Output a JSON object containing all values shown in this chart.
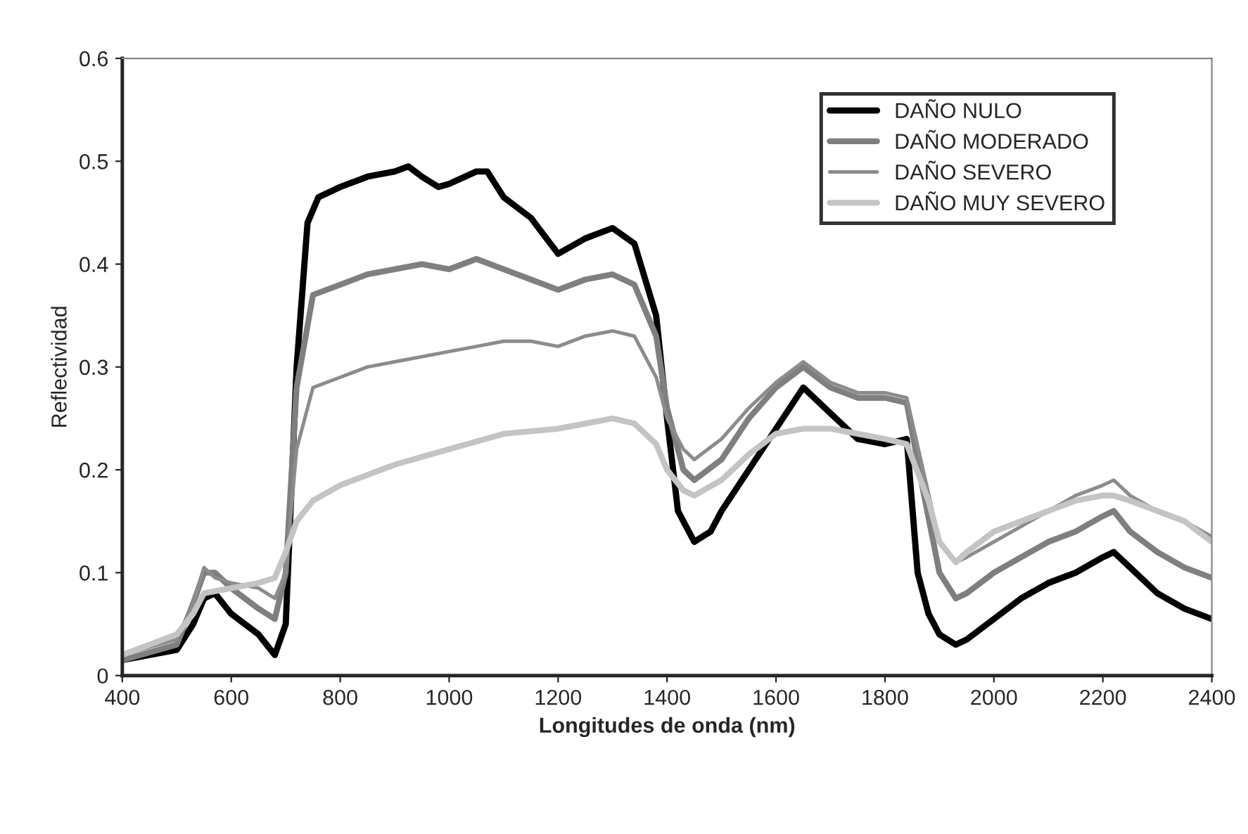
{
  "chart_data": {
    "type": "line",
    "xlabel": "Longitudes de onda (nm)",
    "ylabel": "Reflectividad",
    "xlim": [
      400,
      2400
    ],
    "xticks": [
      400,
      600,
      800,
      1000,
      1200,
      1400,
      1600,
      1800,
      2000,
      2200,
      2400
    ],
    "ylim": [
      0,
      0.6
    ],
    "yticks": [
      0,
      0.1,
      0.2,
      0.3,
      0.4,
      0.5,
      0.6
    ],
    "grid": false,
    "legend": "top right",
    "marker": "none",
    "line_style": "solid",
    "series": [
      {
        "name": "DAÑO NULO",
        "color": "#000000",
        "x": [
          400,
          450,
          500,
          530,
          550,
          570,
          600,
          650,
          680,
          700,
          720,
          740,
          760,
          800,
          850,
          900,
          925,
          950,
          980,
          1000,
          1050,
          1070,
          1100,
          1150,
          1200,
          1250,
          1300,
          1340,
          1380,
          1400,
          1420,
          1450,
          1480,
          1500,
          1550,
          1600,
          1650,
          1700,
          1750,
          1800,
          1840,
          1860,
          1880,
          1900,
          1930,
          1950,
          2000,
          2050,
          2100,
          2150,
          2200,
          2220,
          2250,
          2300,
          2350,
          2400
        ],
        "values": [
          0.015,
          0.02,
          0.025,
          0.05,
          0.075,
          0.08,
          0.06,
          0.04,
          0.02,
          0.05,
          0.3,
          0.44,
          0.465,
          0.475,
          0.485,
          0.49,
          0.495,
          0.485,
          0.475,
          0.478,
          0.49,
          0.49,
          0.465,
          0.445,
          0.41,
          0.425,
          0.435,
          0.42,
          0.35,
          0.25,
          0.16,
          0.13,
          0.14,
          0.16,
          0.2,
          0.24,
          0.28,
          0.255,
          0.23,
          0.225,
          0.23,
          0.1,
          0.06,
          0.04,
          0.03,
          0.035,
          0.055,
          0.075,
          0.09,
          0.1,
          0.115,
          0.12,
          0.105,
          0.08,
          0.065,
          0.055
        ]
      },
      {
        "name": "DAÑO MODERADO",
        "color": "#7f7f7f",
        "x": [
          400,
          500,
          530,
          550,
          570,
          600,
          650,
          680,
          700,
          720,
          750,
          800,
          850,
          900,
          950,
          1000,
          1050,
          1100,
          1150,
          1200,
          1250,
          1300,
          1340,
          1380,
          1400,
          1430,
          1450,
          1500,
          1550,
          1600,
          1650,
          1700,
          1750,
          1800,
          1840,
          1870,
          1900,
          1930,
          1950,
          2000,
          2050,
          2100,
          2150,
          2200,
          2220,
          2250,
          2300,
          2350,
          2400
        ],
        "values": [
          0.015,
          0.03,
          0.07,
          0.1,
          0.1,
          0.085,
          0.065,
          0.055,
          0.1,
          0.28,
          0.37,
          0.38,
          0.39,
          0.395,
          0.4,
          0.395,
          0.405,
          0.395,
          0.385,
          0.375,
          0.385,
          0.39,
          0.38,
          0.33,
          0.26,
          0.2,
          0.19,
          0.21,
          0.25,
          0.28,
          0.3,
          0.28,
          0.27,
          0.27,
          0.265,
          0.18,
          0.1,
          0.075,
          0.08,
          0.1,
          0.115,
          0.13,
          0.14,
          0.155,
          0.16,
          0.14,
          0.12,
          0.105,
          0.095
        ]
      },
      {
        "name": "DAÑO SEVERO",
        "color": "#8c8c8c",
        "x": [
          400,
          500,
          530,
          550,
          570,
          600,
          650,
          680,
          700,
          720,
          750,
          800,
          850,
          900,
          1000,
          1050,
          1100,
          1150,
          1200,
          1250,
          1300,
          1340,
          1380,
          1400,
          1430,
          1450,
          1500,
          1550,
          1600,
          1650,
          1700,
          1750,
          1800,
          1840,
          1870,
          1900,
          1930,
          1950,
          2000,
          2050,
          2100,
          2150,
          2200,
          2220,
          2250,
          2300,
          2350,
          2400
        ],
        "values": [
          0.02,
          0.035,
          0.07,
          0.105,
          0.095,
          0.09,
          0.085,
          0.075,
          0.1,
          0.22,
          0.28,
          0.29,
          0.3,
          0.305,
          0.315,
          0.32,
          0.325,
          0.325,
          0.32,
          0.33,
          0.335,
          0.33,
          0.29,
          0.25,
          0.22,
          0.21,
          0.23,
          0.26,
          0.285,
          0.305,
          0.285,
          0.275,
          0.275,
          0.27,
          0.2,
          0.13,
          0.11,
          0.115,
          0.13,
          0.145,
          0.16,
          0.175,
          0.185,
          0.19,
          0.175,
          0.16,
          0.15,
          0.135
        ]
      },
      {
        "name": "DAÑO MUY SEVERO",
        "color": "#c4c4c4",
        "x": [
          400,
          500,
          530,
          550,
          600,
          650,
          680,
          700,
          720,
          750,
          800,
          850,
          900,
          1000,
          1100,
          1200,
          1250,
          1300,
          1340,
          1380,
          1400,
          1430,
          1450,
          1500,
          1550,
          1600,
          1650,
          1700,
          1750,
          1800,
          1840,
          1880,
          1900,
          1930,
          1950,
          2000,
          2050,
          2100,
          2150,
          2200,
          2220,
          2250,
          2300,
          2350,
          2400
        ],
        "values": [
          0.02,
          0.04,
          0.06,
          0.08,
          0.085,
          0.09,
          0.095,
          0.12,
          0.15,
          0.17,
          0.185,
          0.195,
          0.205,
          0.22,
          0.235,
          0.24,
          0.245,
          0.25,
          0.245,
          0.225,
          0.2,
          0.18,
          0.175,
          0.19,
          0.215,
          0.235,
          0.24,
          0.24,
          0.235,
          0.23,
          0.225,
          0.17,
          0.13,
          0.11,
          0.12,
          0.14,
          0.15,
          0.16,
          0.17,
          0.175,
          0.175,
          0.17,
          0.16,
          0.15,
          0.13
        ]
      }
    ]
  }
}
